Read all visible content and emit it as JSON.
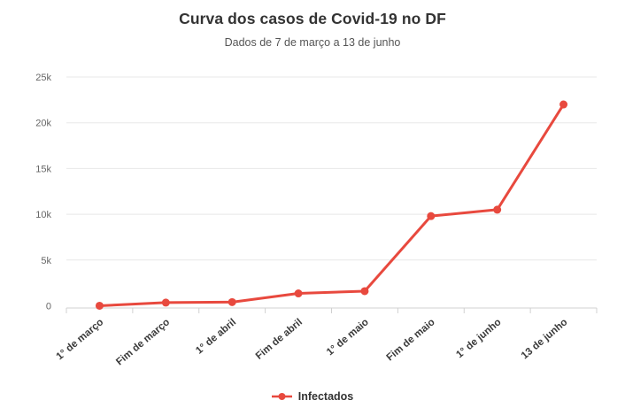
{
  "title": "Curva dos casos de Covid-19 no DF",
  "subtitle": "Dados de 7 de março a 13 de junho",
  "legend": {
    "items": [
      {
        "label": "Infectados",
        "marker": "line-dot-icon"
      }
    ]
  },
  "colors": {
    "series": "#e8493e",
    "grid": "#e8e8e8",
    "axis": "#d0d0d0",
    "title_text": "#333333",
    "subtitle_text": "#555555",
    "ytick_text": "#666666",
    "xtick_text": "#3a3a3a",
    "background": "#ffffff"
  },
  "chart_data": {
    "type": "line",
    "title": "Curva dos casos de Covid-19 no DF",
    "subtitle": "Dados de 7 de março a 13 de junho",
    "categories": [
      "1° de março",
      "Fim de março",
      "1° de abril",
      "Fim de abril",
      "1° de maio",
      "Fim de maio",
      "1° de junho",
      "13 de junho"
    ],
    "series": [
      {
        "name": "Infectados",
        "color": "#e8493e",
        "values": [
          1,
          350,
          400,
          1350,
          1600,
          9800,
          10500,
          22000
        ]
      }
    ],
    "xlabel": "",
    "ylabel": "",
    "ylim": [
      0,
      25000
    ],
    "yticks": [
      0,
      5000,
      10000,
      15000,
      20000,
      25000
    ],
    "ytick_labels": [
      "0",
      "5k",
      "10k",
      "15k",
      "20k",
      "25k"
    ],
    "grid": true,
    "x_label_rotation": -40,
    "legend_position": "bottom"
  }
}
